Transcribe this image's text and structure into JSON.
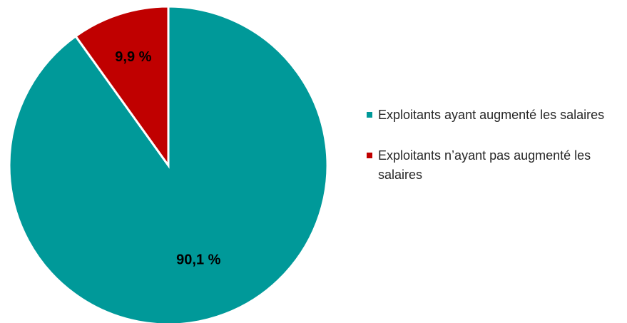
{
  "chart_data": {
    "type": "pie",
    "title": "",
    "slices": [
      {
        "label": "Exploitants ayant augmenté les salaires",
        "value": 90.1,
        "display": "90,1 %",
        "color": "#009999"
      },
      {
        "label": "Exploitants n’ayant pas augmenté les salaires",
        "value": 9.9,
        "display": "9,9 %",
        "color": "#C00000"
      }
    ],
    "legend": "right"
  }
}
